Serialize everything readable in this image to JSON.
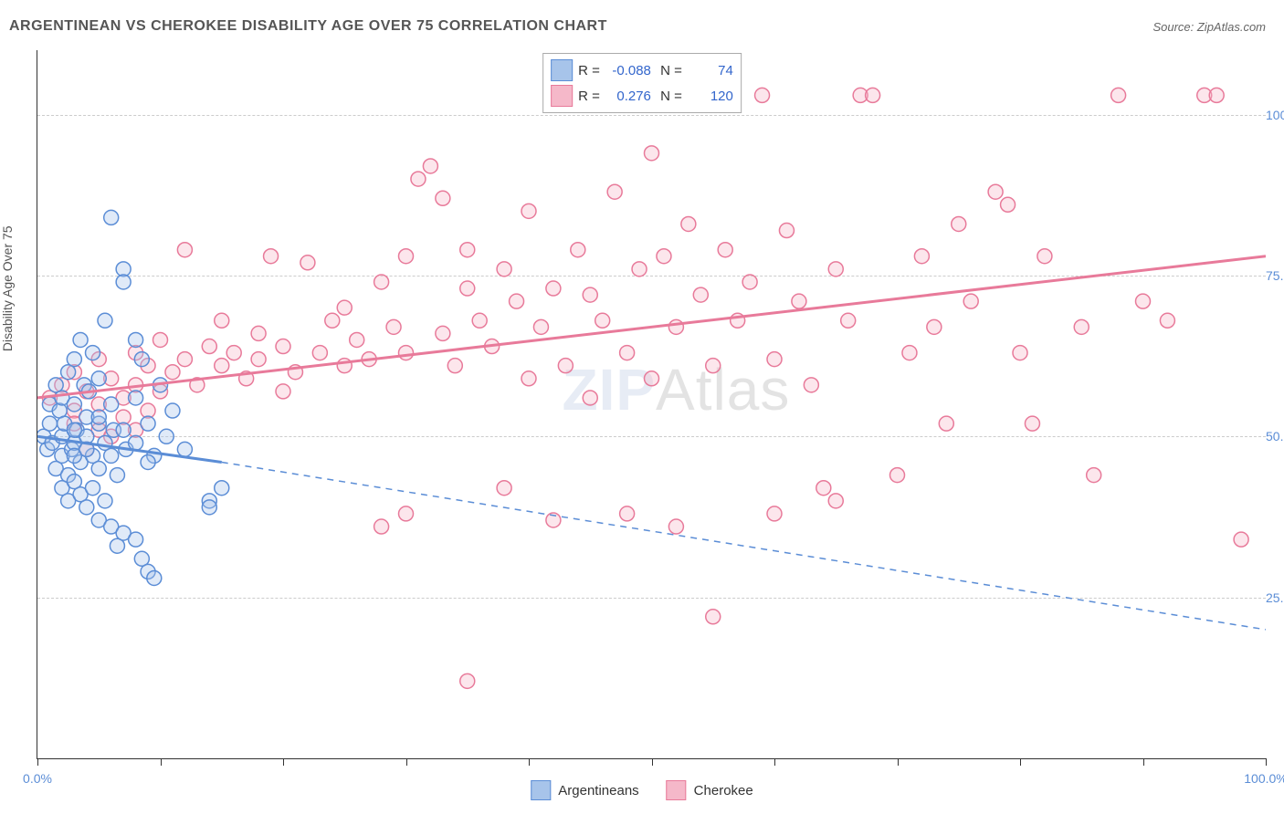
{
  "title": "ARGENTINEAN VS CHEROKEE DISABILITY AGE OVER 75 CORRELATION CHART",
  "source": "Source: ZipAtlas.com",
  "ylabel": "Disability Age Over 75",
  "watermark_bold": "ZIP",
  "watermark_thin": "Atlas",
  "chart": {
    "type": "scatter",
    "xlim": [
      0,
      100
    ],
    "ylim": [
      0,
      110
    ],
    "yticks": [
      25,
      50,
      75,
      100
    ],
    "ytick_labels": [
      "25.0%",
      "50.0%",
      "75.0%",
      "100.0%"
    ],
    "xticks": [
      0,
      10,
      20,
      30,
      40,
      50,
      60,
      70,
      80,
      90,
      100
    ],
    "xtick_labels_shown": {
      "0": "0.0%",
      "100": "100.0%"
    },
    "background_color": "#ffffff",
    "grid_color": "#cccccc",
    "axis_color": "#333333",
    "marker_radius": 8,
    "marker_stroke_width": 1.5,
    "marker_fill_opacity": 0.35,
    "line_width": 3,
    "series": {
      "argentineans": {
        "label": "Argentineans",
        "color": "#5b8dd6",
        "fill": "#a7c4ea",
        "R": "-0.088",
        "N": "74",
        "trend_solid": {
          "x1": 0,
          "y1": 50,
          "x2": 15,
          "y2": 46
        },
        "trend_dashed": {
          "x1": 15,
          "y1": 46,
          "x2": 100,
          "y2": 20
        },
        "points": [
          [
            0.5,
            50
          ],
          [
            0.8,
            48
          ],
          [
            1,
            52
          ],
          [
            1,
            55
          ],
          [
            1.2,
            49
          ],
          [
            1.5,
            58
          ],
          [
            1.5,
            45
          ],
          [
            1.8,
            54
          ],
          [
            2,
            50
          ],
          [
            2,
            47
          ],
          [
            2,
            56
          ],
          [
            2.2,
            52
          ],
          [
            2.5,
            60
          ],
          [
            2.5,
            44
          ],
          [
            2.8,
            48
          ],
          [
            3,
            55
          ],
          [
            3,
            49
          ],
          [
            3,
            62
          ],
          [
            3.2,
            51
          ],
          [
            3.5,
            65
          ],
          [
            3.5,
            46
          ],
          [
            3.8,
            58
          ],
          [
            4,
            50
          ],
          [
            4,
            53
          ],
          [
            4.2,
            57
          ],
          [
            4.5,
            47
          ],
          [
            4.5,
            63
          ],
          [
            5,
            52
          ],
          [
            5,
            45
          ],
          [
            5,
            59
          ],
          [
            5.5,
            68
          ],
          [
            5.5,
            49
          ],
          [
            6,
            55
          ],
          [
            6,
            84
          ],
          [
            6.2,
            51
          ],
          [
            6.5,
            44
          ],
          [
            7,
            76
          ],
          [
            7,
            74
          ],
          [
            7.2,
            48
          ],
          [
            8,
            65
          ],
          [
            8,
            56
          ],
          [
            8.5,
            62
          ],
          [
            9,
            52
          ],
          [
            9.5,
            47
          ],
          [
            10,
            58
          ],
          [
            10.5,
            50
          ],
          [
            11,
            54
          ],
          [
            12,
            48
          ],
          [
            2,
            42
          ],
          [
            2.5,
            40
          ],
          [
            3,
            43
          ],
          [
            3.5,
            41
          ],
          [
            4,
            39
          ],
          [
            4.5,
            42
          ],
          [
            5,
            37
          ],
          [
            5.5,
            40
          ],
          [
            6,
            36
          ],
          [
            6.5,
            33
          ],
          [
            7,
            35
          ],
          [
            8,
            34
          ],
          [
            8.5,
            31
          ],
          [
            9,
            29
          ],
          [
            9.5,
            28
          ],
          [
            14,
            40
          ],
          [
            14,
            39
          ],
          [
            15,
            42
          ],
          [
            3,
            47
          ],
          [
            3,
            51
          ],
          [
            4,
            48
          ],
          [
            5,
            53
          ],
          [
            6,
            47
          ],
          [
            7,
            51
          ],
          [
            8,
            49
          ],
          [
            9,
            46
          ]
        ]
      },
      "cherokee": {
        "label": "Cherokee",
        "color": "#e87a9a",
        "fill": "#f5b8c9",
        "R": "0.276",
        "N": "120",
        "trend_solid": {
          "x1": 0,
          "y1": 56,
          "x2": 100,
          "y2": 78
        },
        "points": [
          [
            1,
            56
          ],
          [
            2,
            58
          ],
          [
            3,
            54
          ],
          [
            3,
            60
          ],
          [
            4,
            57
          ],
          [
            5,
            55
          ],
          [
            5,
            62
          ],
          [
            6,
            59
          ],
          [
            7,
            56
          ],
          [
            8,
            63
          ],
          [
            8,
            58
          ],
          [
            9,
            61
          ],
          [
            10,
            57
          ],
          [
            10,
            65
          ],
          [
            11,
            60
          ],
          [
            12,
            62
          ],
          [
            12,
            79
          ],
          [
            13,
            58
          ],
          [
            14,
            64
          ],
          [
            15,
            61
          ],
          [
            15,
            68
          ],
          [
            16,
            63
          ],
          [
            17,
            59
          ],
          [
            18,
            66
          ],
          [
            18,
            62
          ],
          [
            19,
            78
          ],
          [
            20,
            64
          ],
          [
            20,
            57
          ],
          [
            21,
            60
          ],
          [
            22,
            77
          ],
          [
            23,
            63
          ],
          [
            24,
            68
          ],
          [
            25,
            61
          ],
          [
            25,
            70
          ],
          [
            26,
            65
          ],
          [
            27,
            62
          ],
          [
            28,
            74
          ],
          [
            29,
            67
          ],
          [
            30,
            78
          ],
          [
            30,
            63
          ],
          [
            31,
            90
          ],
          [
            32,
            92
          ],
          [
            33,
            87
          ],
          [
            33,
            66
          ],
          [
            34,
            61
          ],
          [
            35,
            73
          ],
          [
            35,
            79
          ],
          [
            36,
            68
          ],
          [
            37,
            64
          ],
          [
            38,
            76
          ],
          [
            39,
            71
          ],
          [
            40,
            59
          ],
          [
            40,
            85
          ],
          [
            41,
            67
          ],
          [
            42,
            73
          ],
          [
            43,
            61
          ],
          [
            44,
            79
          ],
          [
            45,
            56
          ],
          [
            45,
            72
          ],
          [
            46,
            68
          ],
          [
            47,
            88
          ],
          [
            48,
            63
          ],
          [
            49,
            76
          ],
          [
            50,
            94
          ],
          [
            50,
            59
          ],
          [
            51,
            78
          ],
          [
            52,
            67
          ],
          [
            53,
            83
          ],
          [
            54,
            72
          ],
          [
            55,
            61
          ],
          [
            56,
            79
          ],
          [
            57,
            68
          ],
          [
            58,
            74
          ],
          [
            59,
            103
          ],
          [
            60,
            62
          ],
          [
            61,
            82
          ],
          [
            62,
            71
          ],
          [
            63,
            58
          ],
          [
            64,
            42
          ],
          [
            65,
            76
          ],
          [
            66,
            68
          ],
          [
            67,
            103
          ],
          [
            68,
            103
          ],
          [
            70,
            44
          ],
          [
            71,
            63
          ],
          [
            72,
            78
          ],
          [
            73,
            67
          ],
          [
            74,
            52
          ],
          [
            75,
            83
          ],
          [
            76,
            71
          ],
          [
            78,
            88
          ],
          [
            79,
            86
          ],
          [
            80,
            63
          ],
          [
            81,
            52
          ],
          [
            82,
            78
          ],
          [
            85,
            67
          ],
          [
            86,
            44
          ],
          [
            88,
            103
          ],
          [
            90,
            71
          ],
          [
            92,
            68
          ],
          [
            95,
            103
          ],
          [
            96,
            103
          ],
          [
            98,
            34
          ],
          [
            28,
            36
          ],
          [
            30,
            38
          ],
          [
            35,
            12
          ],
          [
            38,
            42
          ],
          [
            42,
            37
          ],
          [
            48,
            38
          ],
          [
            52,
            36
          ],
          [
            55,
            22
          ],
          [
            60,
            38
          ],
          [
            65,
            40
          ],
          [
            3,
            52
          ],
          [
            4,
            48
          ],
          [
            5,
            51
          ],
          [
            6,
            50
          ],
          [
            7,
            53
          ],
          [
            8,
            51
          ],
          [
            9,
            54
          ]
        ]
      }
    }
  },
  "stats_box": {
    "rows": [
      {
        "swatch_fill": "#a7c4ea",
        "swatch_border": "#5b8dd6",
        "R_label": "R =",
        "R": "-0.088",
        "N_label": "N =",
        "N": "74"
      },
      {
        "swatch_fill": "#f5b8c9",
        "swatch_border": "#e87a9a",
        "R_label": "R =",
        "R": "0.276",
        "N_label": "N =",
        "N": "120"
      }
    ]
  },
  "legend": {
    "items": [
      {
        "fill": "#a7c4ea",
        "border": "#5b8dd6",
        "label": "Argentineans"
      },
      {
        "fill": "#f5b8c9",
        "border": "#e87a9a",
        "label": "Cherokee"
      }
    ]
  }
}
